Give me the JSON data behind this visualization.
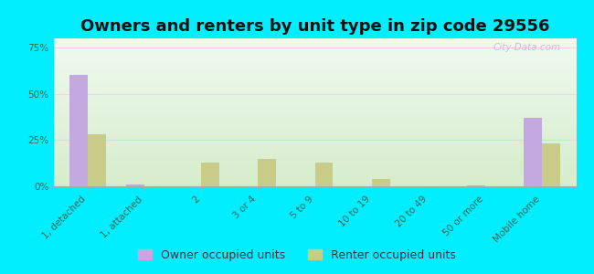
{
  "title": "Owners and renters by unit type in zip code 29556",
  "categories": [
    "1, detached",
    "1, attached",
    "2",
    "3 or 4",
    "5 to 9",
    "10 to 19",
    "20 to 49",
    "50 or more",
    "Mobile home"
  ],
  "owner_values": [
    60,
    1,
    0,
    0,
    0,
    0,
    0,
    0.3,
    37
  ],
  "renter_values": [
    28,
    0,
    13,
    15,
    13,
    4,
    0,
    0,
    23
  ],
  "owner_color": "#c4a8e0",
  "renter_color": "#c8cc88",
  "background_color": "#00eeff",
  "plot_bg_topleft": "#d0eedd",
  "plot_bg_topright": "#eaf5ee",
  "plot_bg_bottom": "#d8eecc",
  "ylabel_ticks": [
    "0%",
    "25%",
    "50%",
    "75%"
  ],
  "ytick_vals": [
    0,
    25,
    50,
    75
  ],
  "ylim": [
    0,
    80
  ],
  "bar_width": 0.32,
  "legend_owner": "Owner occupied units",
  "legend_renter": "Renter occupied units",
  "title_fontsize": 13,
  "tick_fontsize": 7.5,
  "legend_fontsize": 9,
  "watermark": "City-Data.com"
}
